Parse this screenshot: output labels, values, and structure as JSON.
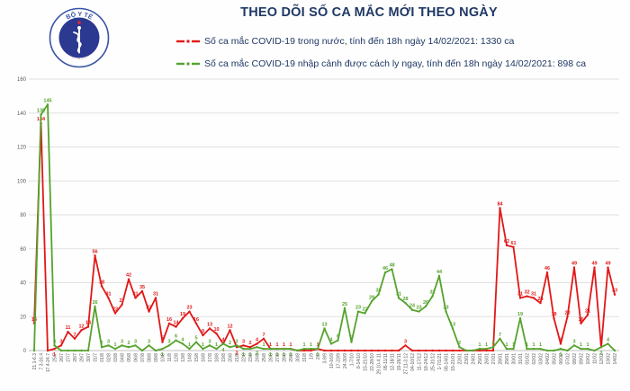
{
  "header": {
    "title": "THEO DÕI SỐ CA MẮC MỚI THEO NGÀY",
    "logo_text": "BỘ Y TẾ"
  },
  "colors": {
    "domestic": "#e21717",
    "imported": "#55a32c",
    "title": "#1f3864"
  },
  "chart_data": {
    "type": "line",
    "title": "THEO DÕI SỐ CA MẮC MỚI THEO NGÀY",
    "xlabel": "",
    "ylabel": "",
    "ylim": [
      0,
      160
    ],
    "yticks": [
      0,
      20,
      40,
      60,
      80,
      100,
      120,
      140,
      160
    ],
    "grid": true,
    "legend_position": "top",
    "categories": [
      "21.1-6.3",
      "7.3-16.4",
      "17.4-24.7",
      "25/7",
      "26/7",
      "27/7",
      "28/7",
      "29/7",
      "30/7",
      "31/7",
      "01/8",
      "02/8",
      "03/8",
      "04/8",
      "05/8",
      "06/8",
      "07/8",
      "08/8",
      "09/8",
      "10/8",
      "11/8",
      "12/8",
      "13/8",
      "14/8",
      "15/8",
      "16/8",
      "17/8",
      "18/8",
      "19/8",
      "20/8",
      "21/8",
      "22/8",
      "23/8",
      "24/8",
      "25/8",
      "26/8",
      "27/8",
      "28/8",
      "29/8",
      "30/8",
      "31/8",
      "1/9",
      "2/9",
      "3-9/9",
      "10-16/9",
      "17-23/9",
      "24-30/9",
      "1-7/10",
      "8-14/10",
      "15-21/10",
      "22-28/10",
      "29.10-4.11",
      "05-11/11",
      "12-18/11",
      "19-26/11",
      "27.11-3.12",
      "04-10/12",
      "11-17/12",
      "18-24/12",
      "25-31/12",
      "1-7/1/21",
      "08-14/01",
      "15-21/01",
      "22/01",
      "23/01",
      "24/01",
      "25/01",
      "26/01",
      "27/01",
      "28/01",
      "29/01",
      "30/01",
      "31/01",
      "01/02",
      "02/02",
      "03/02",
      "04/02",
      "05/02",
      "06/02",
      "07/02",
      "08/02",
      "09/02",
      "10/02",
      "11/02",
      "12/02",
      "13/02",
      "14/02"
    ],
    "series": [
      {
        "name": "Số ca mắc COVID-19 trong nước, tính đến 18h ngày 14/02/2021: 1330 ca",
        "color": "#e21717",
        "values": [
          16,
          134,
          0,
          1,
          3,
          11,
          7,
          12,
          14,
          56,
          38,
          31,
          22,
          27,
          42,
          31,
          35,
          23,
          31,
          5,
          16,
          14,
          19,
          23,
          16,
          9,
          13,
          10,
          4,
          12,
          2,
          3,
          2,
          4,
          7,
          1,
          1,
          1,
          1,
          0,
          0,
          0,
          1,
          0,
          0,
          0,
          0,
          0,
          0,
          0,
          0,
          0,
          0,
          0,
          0,
          3,
          0,
          0,
          0,
          0,
          0,
          0,
          0,
          0,
          0,
          0,
          0,
          0,
          0,
          84,
          62,
          61,
          31,
          32,
          31,
          28,
          46,
          19,
          4,
          20,
          49,
          16,
          21,
          49,
          2,
          49,
          33
        ]
      },
      {
        "name": "Số ca mắc COVID-19 nhập cảnh được cách ly ngay, tính đến 18h ngày 14/02/2021: 898 ca",
        "color": "#55a32c",
        "values": [
          0,
          139,
          145,
          3,
          0,
          0,
          0,
          0,
          0,
          26,
          2,
          3,
          1,
          3,
          2,
          3,
          0,
          3,
          0,
          1,
          3,
          6,
          4,
          1,
          5,
          1,
          3,
          1,
          4,
          2,
          3,
          1,
          1,
          2,
          1,
          1,
          1,
          1,
          1,
          0,
          1,
          1,
          1,
          13,
          4,
          6,
          25,
          5,
          23,
          22,
          29,
          33,
          46,
          48,
          31,
          28,
          24,
          23,
          26,
          32,
          44,
          23,
          13,
          2,
          0,
          0,
          1,
          1,
          2,
          7,
          1,
          1,
          19,
          1,
          1,
          1,
          0,
          0,
          1,
          0,
          3,
          1,
          1,
          0,
          2,
          4,
          0
        ]
      }
    ]
  }
}
